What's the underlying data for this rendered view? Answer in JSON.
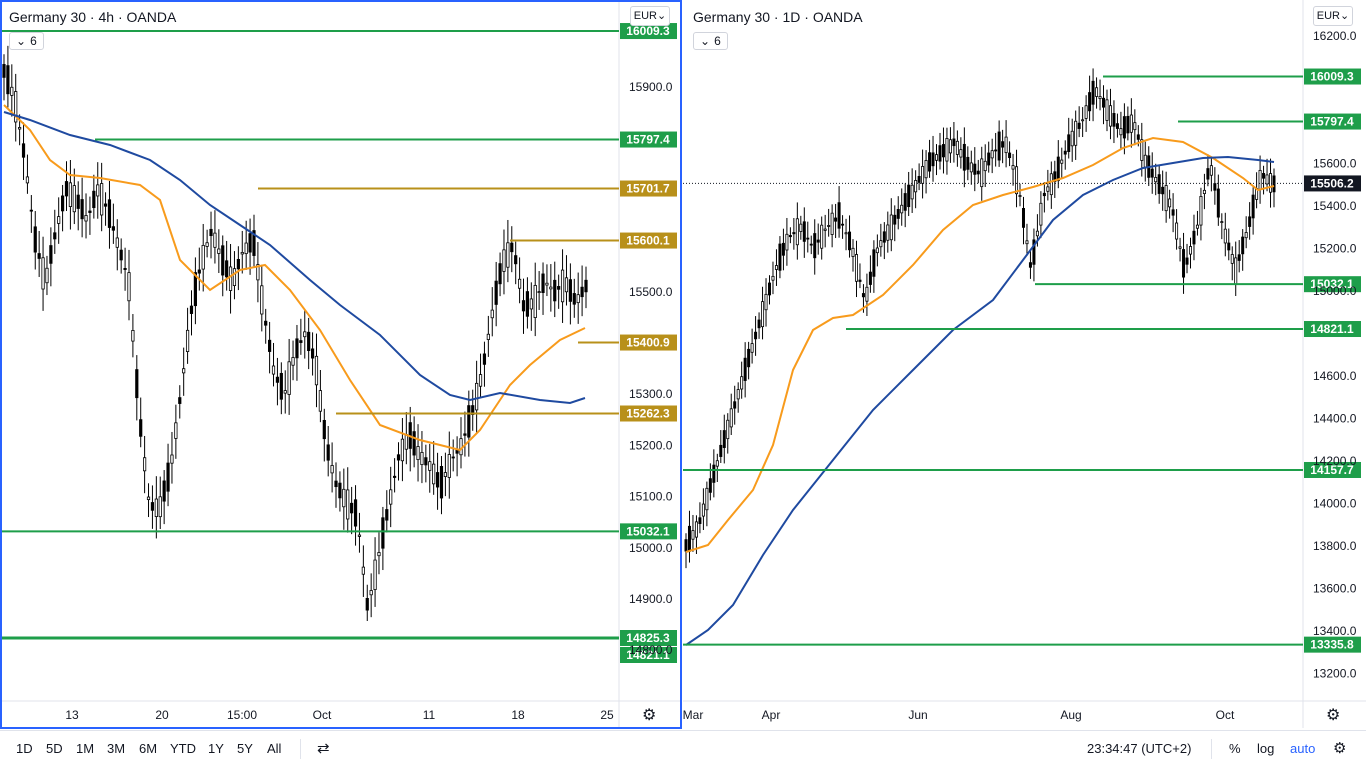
{
  "left": {
    "title": "Germany 30 · 4h · OANDA",
    "indicator_count": "6",
    "currency": "EUR",
    "price_scale": [
      "15900.0",
      "15800.0",
      "15700.0",
      "15600.0",
      "15500.0",
      "15400.0",
      "15300.0",
      "15200.0",
      "15100.0",
      "15000.0",
      "14900.0",
      "14800.0"
    ],
    "time_labels": [
      "13",
      "20",
      "15:00",
      "Oct",
      "11",
      "18",
      "25"
    ],
    "levels": [
      {
        "label": "16009.3",
        "color": "#1e9e4a"
      },
      {
        "label": "15797.4",
        "color": "#1e9e4a"
      },
      {
        "label": "15701.7",
        "color": "#b8901a"
      },
      {
        "label": "15600.1",
        "color": "#b8901a"
      },
      {
        "label": "15400.9",
        "color": "#b8901a"
      },
      {
        "label": "15262.3",
        "color": "#b8901a"
      },
      {
        "label": "15032.1",
        "color": "#1e9e4a"
      },
      {
        "label": "14825.3",
        "color": "#1e9e4a"
      },
      {
        "label": "14821.1",
        "color": "#1e9e4a"
      }
    ]
  },
  "right": {
    "title": "Germany 30 · 1D · OANDA",
    "indicator_count": "6",
    "currency": "EUR",
    "price_scale": [
      "16200.0",
      "15600.0",
      "15400.0",
      "15200.0",
      "15000.0",
      "14600.0",
      "14400.0",
      "14200.0",
      "14000.0",
      "13800.0",
      "13600.0",
      "13400.0",
      "13200.0"
    ],
    "time_labels": [
      "Mar",
      "Apr",
      "Jun",
      "Aug",
      "Oct"
    ],
    "levels": [
      {
        "label": "16009.3",
        "color": "#1e9e4a"
      },
      {
        "label": "15797.4",
        "color": "#1e9e4a"
      },
      {
        "label": "15506.2",
        "color": "#131722"
      },
      {
        "label": "15032.1",
        "color": "#1e9e4a"
      },
      {
        "label": "14821.1",
        "color": "#1e9e4a"
      },
      {
        "label": "14157.7",
        "color": "#1e9e4a"
      },
      {
        "label": "13335.8",
        "color": "#1e9e4a"
      }
    ]
  },
  "bottom": {
    "ranges": [
      "1D",
      "5D",
      "1M",
      "3M",
      "6M",
      "YTD",
      "1Y",
      "5Y",
      "All"
    ],
    "clock": "23:34:47 (UTC+2)",
    "percent": "%",
    "log": "log",
    "auto": "auto"
  },
  "colors": {
    "green_level": "#1e9e4a",
    "gold_level": "#b8901a",
    "ma_fast": "#f89b1c",
    "ma_slow": "#1f4aa0",
    "focus": "#2962ff"
  },
  "icons": [
    "chevron-down-icon",
    "gear-icon",
    "compare-calendar-icon"
  ]
}
